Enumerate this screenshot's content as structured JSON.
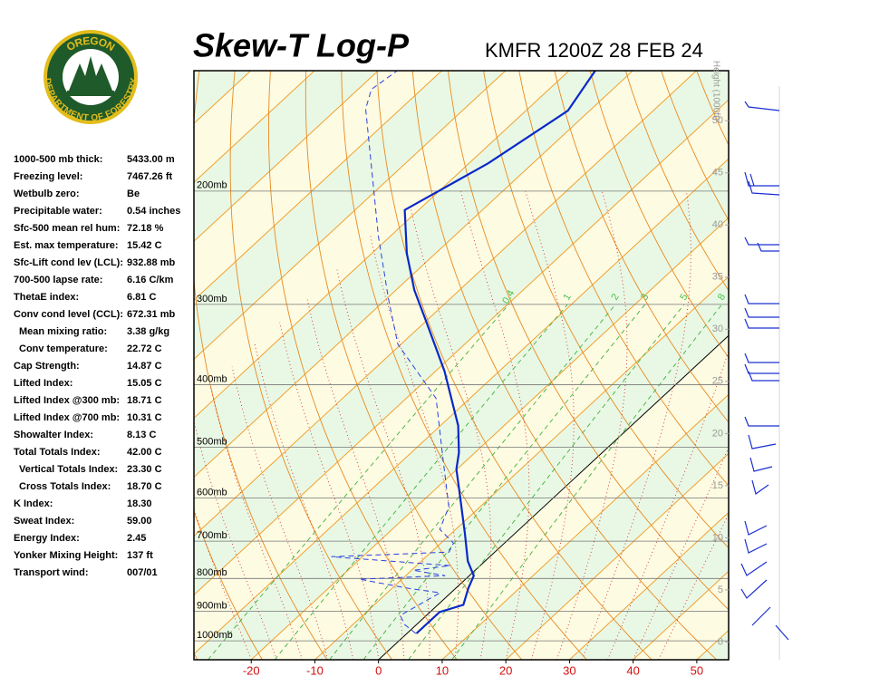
{
  "logo": {
    "top": "OREGON",
    "bottom": "DEPARTMENT OF FORESTRY"
  },
  "stats": [
    {
      "label": "1000-500 mb thick:",
      "value": "5433.00 m"
    },
    {
      "label": "Freezing level:",
      "value": "7467.26 ft"
    },
    {
      "label": "Wetbulb zero:",
      "value": "Be"
    },
    {
      "label": "Precipitable water:",
      "value": "0.54 inches"
    },
    {
      "label": "Sfc-500 mean rel hum:",
      "value": "72.18 %"
    },
    {
      "label": "Est. max temperature:",
      "value": "15.42 C"
    },
    {
      "label": "Sfc-Lift cond lev (LCL):",
      "value": "932.88 mb"
    },
    {
      "label": "700-500 lapse rate:",
      "value": "6.16 C/km"
    },
    {
      "label": "ThetaE index:",
      "value": "6.81 C"
    },
    {
      "label": "Conv cond level (CCL):",
      "value": "672.31 mb",
      "items": [
        {
          "label": "Mean mixing ratio:",
          "value": "3.38 g/kg"
        },
        {
          "label": "Conv temperature:",
          "value": "22.72 C"
        }
      ]
    },
    {
      "label": "Cap Strength:",
      "value": "14.87 C"
    },
    {
      "label": "Lifted Index:",
      "value": "15.05 C"
    },
    {
      "label": "Lifted Index @300 mb:",
      "value": "18.71 C"
    },
    {
      "label": "Lifted Index @700 mb:",
      "value": "10.31 C"
    },
    {
      "label": "Showalter Index:",
      "value": "8.13 C"
    },
    {
      "label": "Total Totals Index:",
      "value": "42.00 C",
      "items": [
        {
          "label": "Vertical Totals Index:",
          "value": "23.30 C"
        },
        {
          "label": "Cross Totals Index:",
          "value": "18.70 C"
        }
      ]
    },
    {
      "label": "K Index:",
      "value": "18.30"
    },
    {
      "label": "Sweat Index:",
      "value": "59.00"
    },
    {
      "label": "Energy Index:",
      "value": "2.45"
    },
    {
      "label": "Yonker Mixing Height:",
      "value": "137 ft"
    },
    {
      "label": "Transport wind:",
      "value": "007/01"
    }
  ],
  "chart_data": {
    "type": "skewt",
    "title": "Skew-T Log-P",
    "subtitle": "KMFR 1200Z 28 FEB 24",
    "y2_label": "Height (1000ft)",
    "xlim": [
      -29,
      55
    ],
    "xticks": [
      -20,
      -10,
      0,
      10,
      20,
      30,
      40,
      50
    ],
    "ylim": [
      1070,
      130
    ],
    "log_y": true,
    "yticks": [
      {
        "value": 200,
        "label": "200mb"
      },
      {
        "value": 300,
        "label": "300mb"
      },
      {
        "value": 400,
        "label": "400mb"
      },
      {
        "value": 500,
        "label": "500mb"
      },
      {
        "value": 600,
        "label": "600mb"
      },
      {
        "value": 700,
        "label": "700mb"
      },
      {
        "value": 800,
        "label": "800mb"
      },
      {
        "value": 900,
        "label": "900mb"
      },
      {
        "value": 1000,
        "label": "1000mb"
      }
    ],
    "y2lim": [
      -1.7,
      54.8
    ],
    "y2ticks": [
      0,
      5,
      10,
      15,
      20,
      25,
      30,
      35,
      40,
      45,
      50
    ],
    "mixing_ratio_lines": [
      0.4,
      1,
      2,
      3,
      5,
      8
    ],
    "series": [
      {
        "name": "Temperature",
        "color": "#0a28c8",
        "dash": false,
        "pressure": [
          974,
          902,
          879,
          829,
          792,
          752,
          683,
          581,
          541,
          510,
          463,
          381,
          319,
          285,
          250,
          214,
          181,
          150,
          130
        ],
        "values": [
          1.5,
          1.5,
          4.0,
          2.0,
          0.7,
          -2.7,
          -7.7,
          -16.3,
          -20.1,
          -22.5,
          -27.2,
          -38.6,
          -49.9,
          -57.1,
          -64.5,
          -72.2,
          -67,
          -63.4,
          -65.9
        ]
      },
      {
        "name": "Dewpoint",
        "color": "#2a40e0",
        "dash": true,
        "pressure": [
          974,
          943,
          913,
          842,
          829,
          802,
          792,
          777,
          764,
          740,
          728,
          705,
          671,
          619,
          527,
          420,
          346,
          294,
          235,
          149,
          139,
          130
        ],
        "values": [
          1.4,
          -1.9,
          -4.1,
          -1.7,
          -7.3,
          -16.7,
          -3.8,
          -9.7,
          -4.7,
          -24.9,
          -7.2,
          -8,
          -12.5,
          -14.9,
          -23.4,
          -35.3,
          -50.5,
          -59.7,
          -71.9,
          -95.5,
          -97.9,
          -97
        ]
      }
    ]
  }
}
